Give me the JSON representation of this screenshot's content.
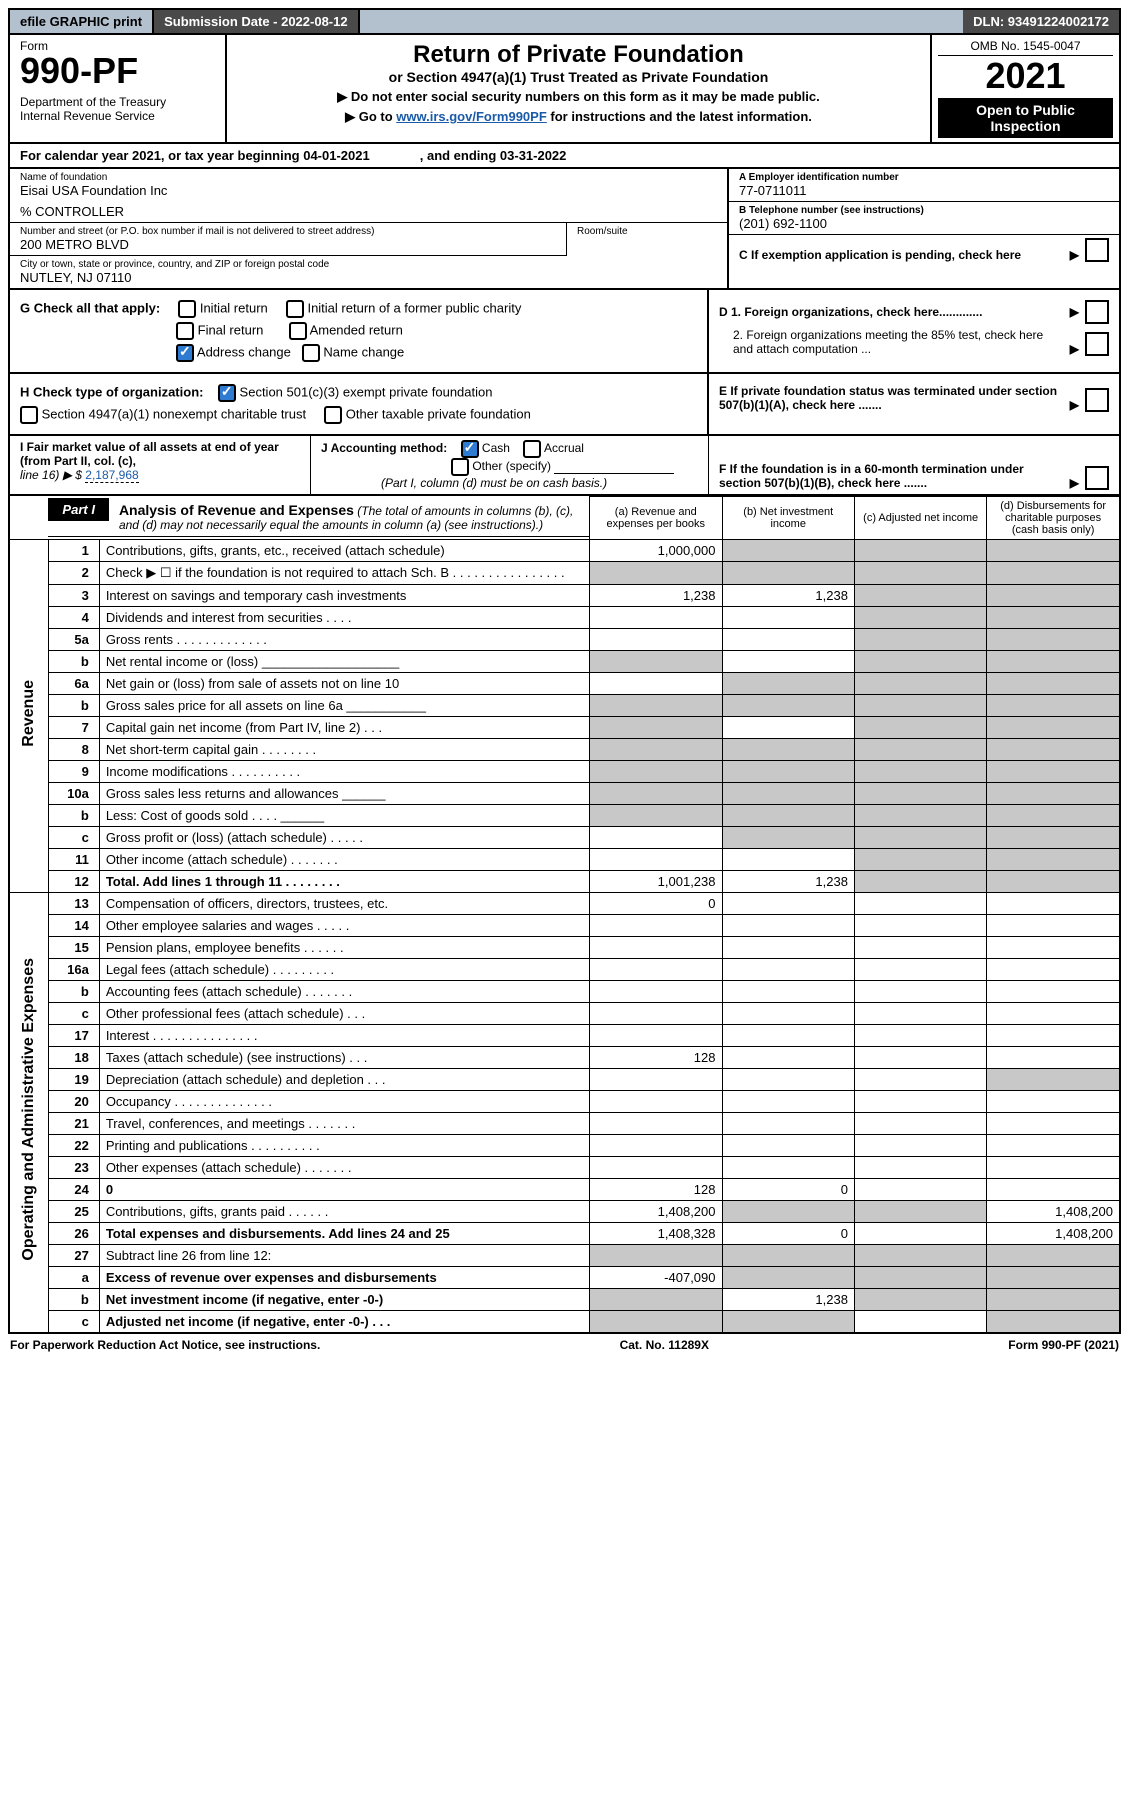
{
  "topbar": {
    "efile": "efile GRAPHIC print",
    "submission_label": "Submission Date - 2022-08-12",
    "dln": "DLN: 93491224002172"
  },
  "header": {
    "form_word": "Form",
    "form_num": "990-PF",
    "dept": "Department of the Treasury\nInternal Revenue Service",
    "title": "Return of Private Foundation",
    "subtitle": "or Section 4947(a)(1) Trust Treated as Private Foundation",
    "instr1": "▶ Do not enter social security numbers on this form as it may be made public.",
    "instr2_pre": "▶ Go to ",
    "instr2_link": "www.irs.gov/Form990PF",
    "instr2_post": " for instructions and the latest information.",
    "omb": "OMB No. 1545-0047",
    "year": "2021",
    "open": "Open to Public Inspection"
  },
  "cal": {
    "line_a": "For calendar year 2021, or tax year beginning 04-01-2021",
    "line_b": ", and ending 03-31-2022"
  },
  "meta": {
    "name_lbl": "Name of foundation",
    "name": "Eisai USA Foundation Inc",
    "pct": "% CONTROLLER",
    "addr_lbl": "Number and street (or P.O. box number if mail is not delivered to street address)",
    "addr": "200 METRO BLVD",
    "room_lbl": "Room/suite",
    "city_lbl": "City or town, state or province, country, and ZIP or foreign postal code",
    "city": "NUTLEY, NJ  07110",
    "ein_lbl": "A Employer identification number",
    "ein": "77-0711011",
    "tel_lbl": "B Telephone number (see instructions)",
    "tel": "(201) 692-1100",
    "c": "C If exemption application is pending, check here",
    "d1": "D 1. Foreign organizations, check here.............",
    "d2": "2. Foreign organizations meeting the 85% test, check here and attach computation ...",
    "e": "E  If private foundation status was terminated under section 507(b)(1)(A), check here .......",
    "f": "F  If the foundation is in a 60-month termination under section 507(b)(1)(B), check here ......."
  },
  "g": {
    "label": "G Check all that apply:",
    "initial": "Initial return",
    "initial_former": "Initial return of a former public charity",
    "final": "Final return",
    "amended": "Amended return",
    "addr_change": "Address change",
    "name_change": "Name change"
  },
  "h": {
    "label": "H Check type of organization:",
    "s501": "Section 501(c)(3) exempt private foundation",
    "s4947": "Section 4947(a)(1) nonexempt charitable trust",
    "other_tax": "Other taxable private foundation"
  },
  "i": {
    "label": "I Fair market value of all assets at end of year (from Part II, col. (c),",
    "line16": "line 16)  ▶ $",
    "value": "2,187,968"
  },
  "j": {
    "label": "J Accounting method:",
    "cash": "Cash",
    "accrual": "Accrual",
    "other": "Other (specify)",
    "note": "(Part I, column (d) must be on cash basis.)"
  },
  "part1": {
    "tag": "Part I",
    "title": "Analysis of Revenue and Expenses",
    "note": " (The total of amounts in columns (b), (c), and (d) may not necessarily equal the amounts in column (a) (see instructions).)",
    "col_a": "(a)   Revenue and expenses per books",
    "col_b": "(b)   Net investment income",
    "col_c": "(c)   Adjusted net income",
    "col_d": "(d)   Disbursements for charitable purposes (cash basis only)"
  },
  "side": {
    "revenue": "Revenue",
    "opexp": "Operating and Administrative Expenses"
  },
  "rows": [
    {
      "n": "1",
      "d": "Contributions, gifts, grants, etc., received (attach schedule)",
      "a": "1,000,000",
      "grey_bcd": true
    },
    {
      "n": "2",
      "d": "Check ▶ ☐ if the foundation is not required to attach Sch. B    .   .   .   .   .   .   .   .   .   .   .   .   .   .   .   .",
      "blank": true
    },
    {
      "n": "3",
      "d": "Interest on savings and temporary cash investments",
      "a": "1,238",
      "b": "1,238"
    },
    {
      "n": "4",
      "d": "Dividends and interest from securities    .   .   .   ."
    },
    {
      "n": "5a",
      "d": "Gross rents    .   .   .   .   .   .   .   .   .   .   .   .   ."
    },
    {
      "n": "b",
      "d": "Net rental income or (loss)  ___________________",
      "grey_a": true
    },
    {
      "n": "6a",
      "d": "Net gain or (loss) from sale of assets not on line 10",
      "grey_bcd": true
    },
    {
      "n": "b",
      "d": "Gross sales price for all assets on line 6a ___________",
      "grey_all": true
    },
    {
      "n": "7",
      "d": "Capital gain net income (from Part IV, line 2)    .   .   .",
      "grey_a": true,
      "grey_cd": true
    },
    {
      "n": "8",
      "d": "Net short-term capital gain   .   .   .   .   .   .   .   .",
      "grey_ab": true
    },
    {
      "n": "9",
      "d": "Income modifications  .   .   .   .   .   .   .   .   .   .",
      "grey_ab": true
    },
    {
      "n": "10a",
      "d": "Gross sales less returns and allowances  ______",
      "grey_all": true
    },
    {
      "n": "b",
      "d": "Less: Cost of goods sold     .   .   .   .   ______",
      "grey_all": true
    },
    {
      "n": "c",
      "d": "Gross profit or (loss) (attach schedule)    .   .   .   .   .",
      "grey_b": true
    },
    {
      "n": "11",
      "d": "Other income (attach schedule)    .   .   .   .   .   .   ."
    },
    {
      "n": "12",
      "d": "Total. Add lines 1 through 11    .   .   .   .   .   .   .   .",
      "bold": true,
      "a": "1,001,238",
      "b": "1,238",
      "grey_d": true
    }
  ],
  "exprows": [
    {
      "n": "13",
      "d": "Compensation of officers, directors, trustees, etc.",
      "a": "0"
    },
    {
      "n": "14",
      "d": "Other employee salaries and wages    .   .   .   .   ."
    },
    {
      "n": "15",
      "d": "Pension plans, employee benefits   .   .   .   .   .   ."
    },
    {
      "n": "16a",
      "d": "Legal fees (attach schedule)  .   .   .   .   .   .   .   .   ."
    },
    {
      "n": "b",
      "d": "Accounting fees (attach schedule)   .   .   .   .   .   .   ."
    },
    {
      "n": "c",
      "d": "Other professional fees (attach schedule)     .   .   ."
    },
    {
      "n": "17",
      "d": "Interest  .   .   .   .   .   .   .   .   .   .   .   .   .   .   ."
    },
    {
      "n": "18",
      "d": "Taxes (attach schedule) (see instructions)     .   .   .",
      "a": "128"
    },
    {
      "n": "19",
      "d": "Depreciation (attach schedule) and depletion    .   .   .",
      "grey_d": true
    },
    {
      "n": "20",
      "d": "Occupancy  .   .   .   .   .   .   .   .   .   .   .   .   .   ."
    },
    {
      "n": "21",
      "d": "Travel, conferences, and meetings  .   .   .   .   .   .   ."
    },
    {
      "n": "22",
      "d": "Printing and publications  .   .   .   .   .   .   .   .   .   ."
    },
    {
      "n": "23",
      "d": "Other expenses (attach schedule)   .   .   .   .   .   .   ."
    },
    {
      "n": "24",
      "d": "0",
      "bold": true,
      "a": "128",
      "b": "0"
    },
    {
      "n": "25",
      "d": "Contributions, gifts, grants paid     .   .   .   .   .   .",
      "a": "1,408,200",
      "grey_bc": true,
      "dv": "1,408,200"
    },
    {
      "n": "26",
      "d": "Total expenses and disbursements. Add lines 24 and 25",
      "bold": true,
      "a": "1,408,328",
      "b": "0",
      "dv": "1,408,200"
    },
    {
      "n": "27",
      "d": "Subtract line 26 from line 12:",
      "grey_all": true
    },
    {
      "n": "a",
      "d": "Excess of revenue over expenses and disbursements",
      "bold": true,
      "a": "-407,090",
      "grey_bcd": true
    },
    {
      "n": "b",
      "d": "Net investment income (if negative, enter -0-)",
      "bold": true,
      "grey_a": true,
      "b": "1,238",
      "grey_cd": true
    },
    {
      "n": "c",
      "d": "Adjusted net income (if negative, enter -0-)   .   .   .",
      "bold": true,
      "grey_ab": true,
      "grey_d": true
    }
  ],
  "footer": {
    "left": "For Paperwork Reduction Act Notice, see instructions.",
    "mid": "Cat. No. 11289X",
    "right": "Form 990-PF (2021)"
  }
}
